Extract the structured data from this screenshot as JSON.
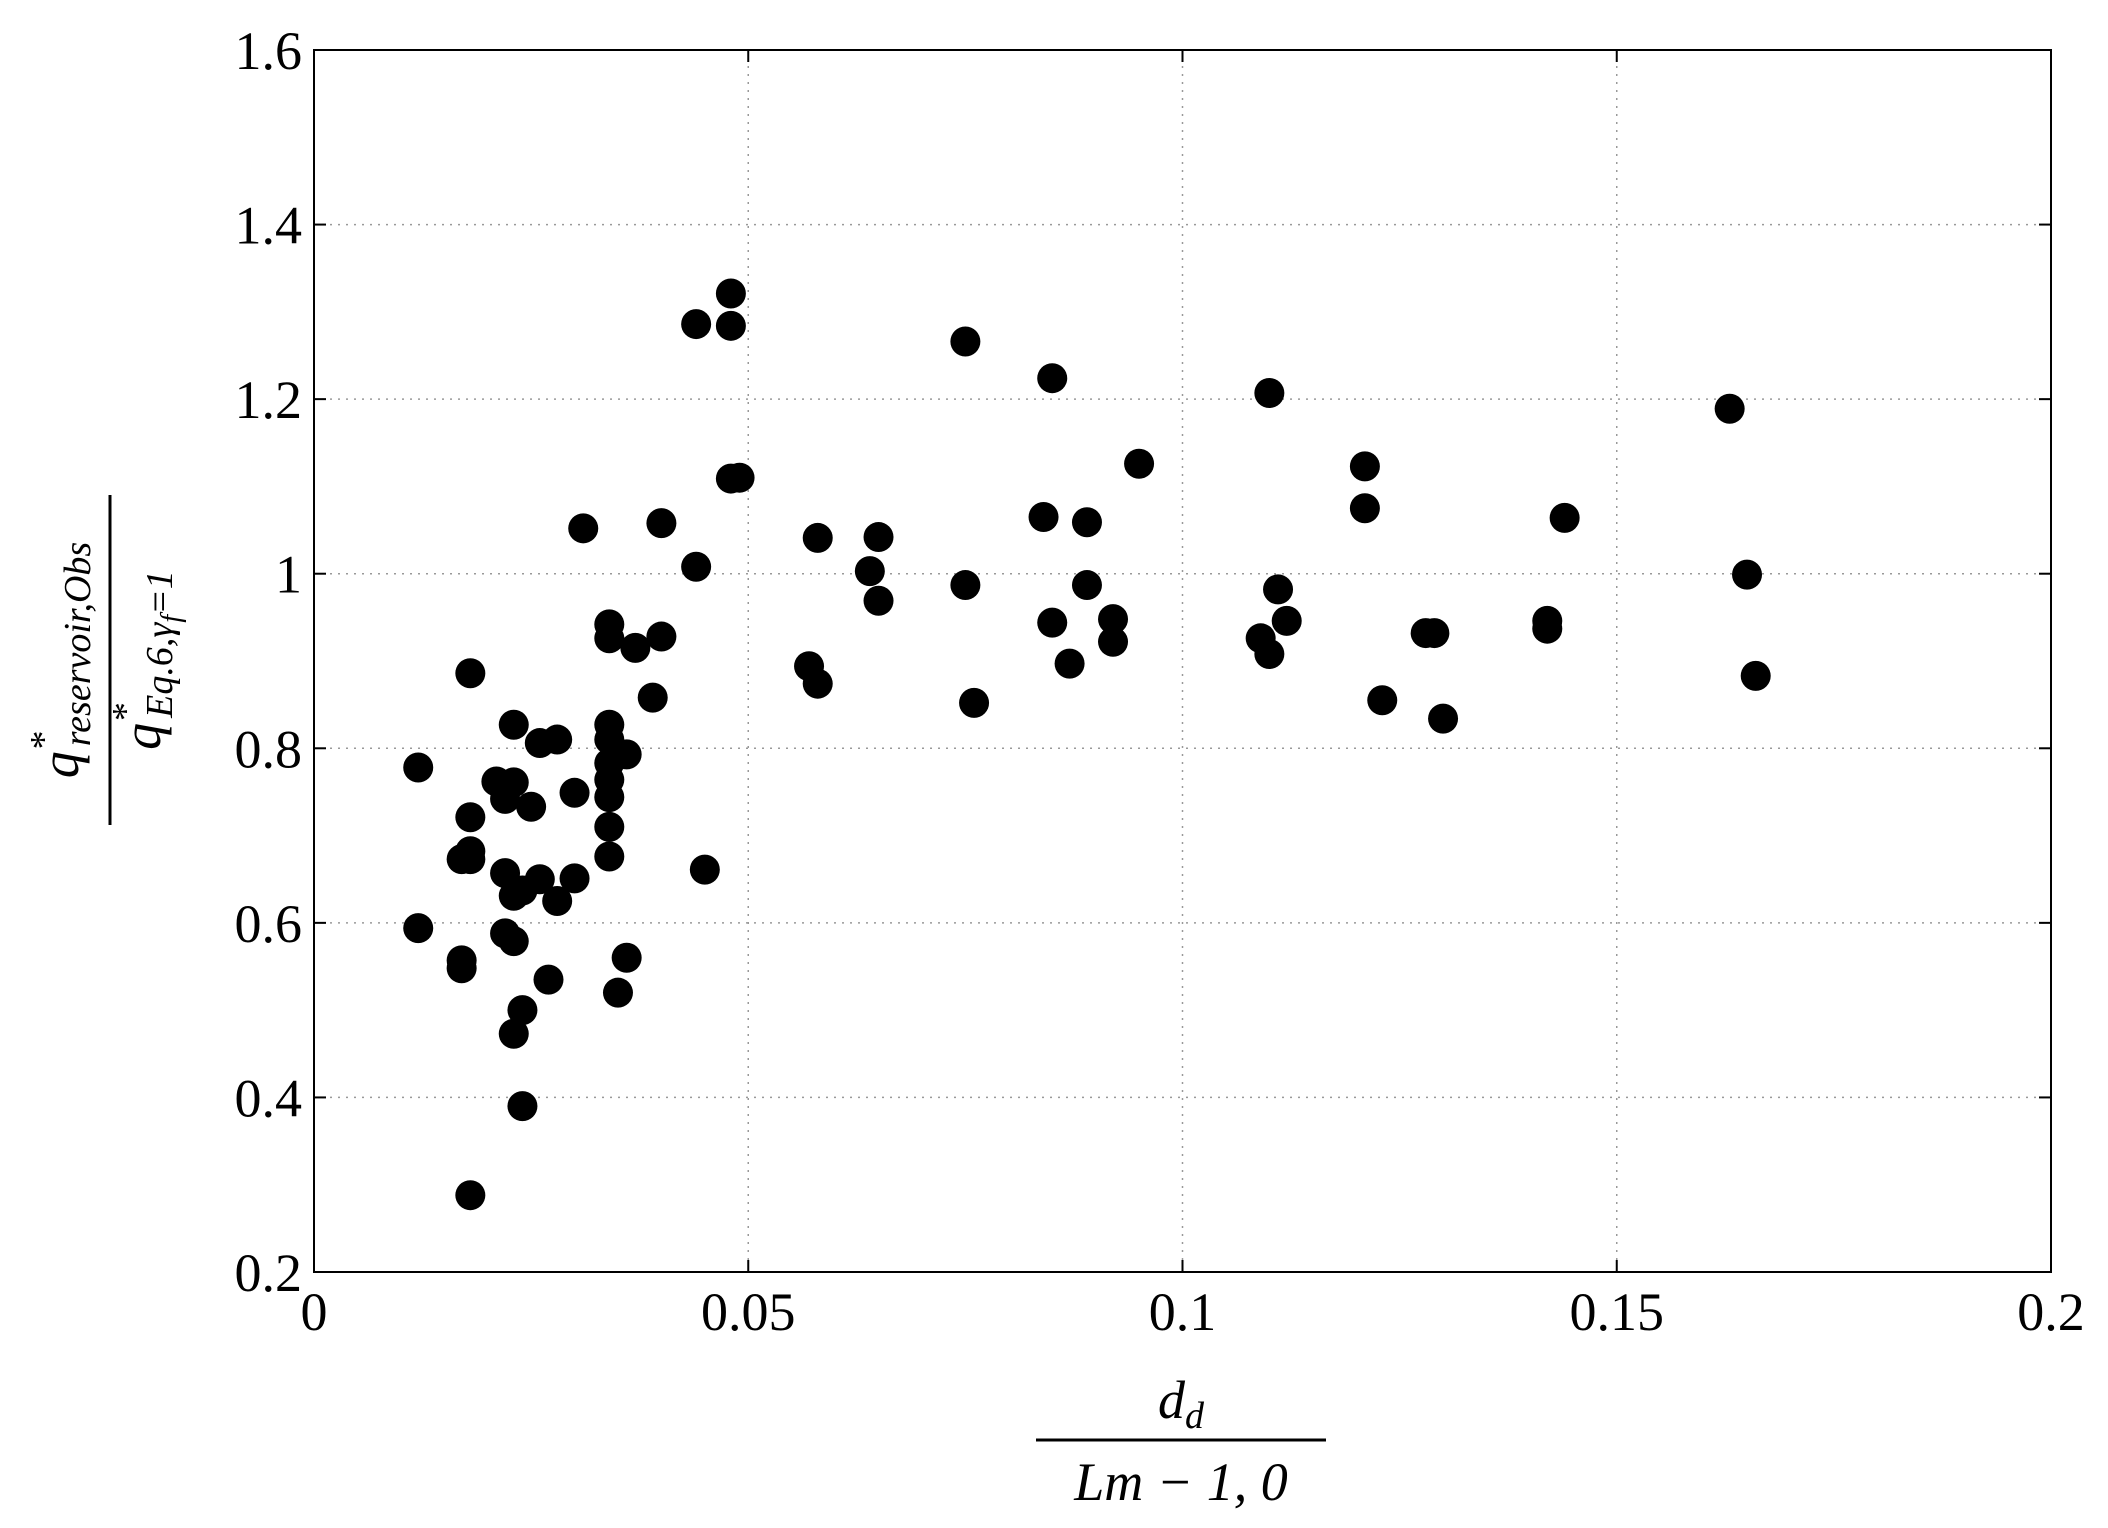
{
  "chart_data": {
    "type": "scatter",
    "xlabel": {
      "numerator": {
        "base": "d",
        "sub": "d"
      },
      "denominator": "Lm − 1, 0"
    },
    "ylabel": {
      "numerator": {
        "base": "q",
        "sup": "*",
        "sub": "reservoir,Obs"
      },
      "denominator": {
        "base": "q",
        "sup": "*",
        "sub": "Eq.6,γ",
        "subsub": "f",
        "tail": "=1"
      }
    },
    "color": "#000000",
    "grid": true,
    "xlim": [
      0,
      0.2
    ],
    "xticks": [
      0,
      0.05,
      0.1,
      0.15,
      0.2
    ],
    "ylim": [
      0.2,
      1.6
    ],
    "yticks": [
      0.2,
      0.4,
      0.6,
      0.8,
      1,
      1.2,
      1.4,
      1.6
    ],
    "x": [
      0.012,
      0.012,
      0.018,
      0.018,
      0.017,
      0.018,
      0.018,
      0.017,
      0.017,
      0.018,
      0.021,
      0.022,
      0.023,
      0.023,
      0.022,
      0.023,
      0.022,
      0.023,
      0.024,
      0.023,
      0.024,
      0.026,
      0.025,
      0.028,
      0.026,
      0.024,
      0.028,
      0.027,
      0.03,
      0.03,
      0.031,
      0.034,
      0.034,
      0.034,
      0.034,
      0.034,
      0.034,
      0.034,
      0.034,
      0.034,
      0.035,
      0.036,
      0.036,
      0.037,
      0.04,
      0.039,
      0.04,
      0.044,
      0.044,
      0.045,
      0.048,
      0.048,
      0.048,
      0.049,
      0.057,
      0.058,
      0.058,
      0.064,
      0.065,
      0.065,
      0.075,
      0.075,
      0.076,
      0.085,
      0.084,
      0.089,
      0.085,
      0.089,
      0.087,
      0.092,
      0.092,
      0.095,
      0.11,
      0.109,
      0.11,
      0.111,
      0.112,
      0.121,
      0.121,
      0.123,
      0.128,
      0.129,
      0.13,
      0.142,
      0.142,
      0.144,
      0.163,
      0.165,
      0.166
    ],
    "values": [
      0.778,
      0.594,
      0.886,
      0.721,
      0.673,
      0.682,
      0.673,
      0.557,
      0.548,
      0.288,
      0.762,
      0.742,
      0.761,
      0.827,
      0.657,
      0.631,
      0.588,
      0.579,
      0.5,
      0.473,
      0.39,
      0.806,
      0.733,
      0.81,
      0.65,
      0.637,
      0.625,
      0.535,
      0.749,
      0.651,
      1.052,
      0.942,
      0.926,
      0.827,
      0.81,
      0.783,
      0.764,
      0.744,
      0.71,
      0.676,
      0.52,
      0.793,
      0.56,
      0.915,
      0.928,
      0.858,
      1.058,
      1.008,
      1.286,
      0.661,
      1.321,
      1.284,
      1.109,
      1.11,
      0.894,
      0.874,
      1.041,
      1.003,
      1.042,
      0.969,
      1.266,
      0.987,
      0.852,
      1.224,
      1.065,
      1.059,
      0.944,
      0.987,
      0.897,
      0.948,
      0.922,
      1.126,
      1.207,
      0.926,
      0.908,
      0.982,
      0.946,
      1.123,
      1.075,
      0.855,
      0.932,
      0.932,
      0.834,
      0.937,
      0.946,
      1.064,
      1.189,
      0.999,
      0.883
    ]
  }
}
